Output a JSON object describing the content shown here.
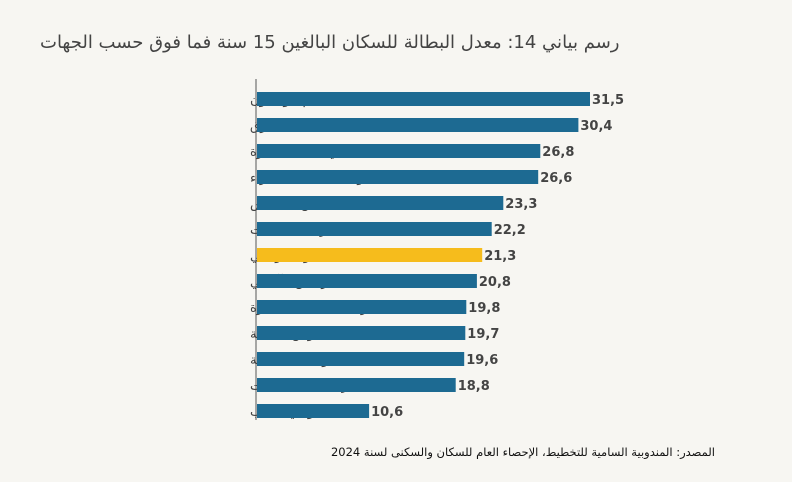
{
  "title": "رسم بياني 14: معدل البطالة للسكان البالغين 15 سنة فما فوق حسب الجهات",
  "source": "المصدر: المندوبية السامية للتخطيط، الإحصاء العام للسكان والسكنى لسنة 2024",
  "colors": {
    "bar": "#1d6a92",
    "highlight": "#f6bc1c",
    "background": "#f7f6f2",
    "axis": "#555555"
  },
  "chart_data": {
    "type": "bar",
    "orientation": "horizontal",
    "categories": [
      "كلميم - واد نون",
      "الشرق",
      "بني ملال - خنيفرة",
      "العيون - الساقية الحمراء",
      "فاس - مكناس",
      "درعة - تافيلالت",
      "المستوى الوطني",
      "مراكش - آسفي",
      "الرباط - سلا - القنيطرة",
      "سوس - ماسة",
      "طنجة - تطوان - الحسيمة",
      "الدار البيضاء - سطات",
      "الداخلة - وادي الذهب"
    ],
    "values": [
      31.5,
      30.4,
      26.8,
      26.6,
      23.3,
      22.2,
      21.3,
      20.8,
      19.8,
      19.7,
      19.6,
      18.8,
      10.6
    ],
    "value_labels": [
      "31,5",
      "30,4",
      "26,8",
      "26,6",
      "23,3",
      "22,2",
      "21,3",
      "20,8",
      "19,8",
      "19,7",
      "19,6",
      "18,8",
      "10,6"
    ],
    "highlight_category": "المستوى الوطني",
    "xlim": [
      0,
      31.5
    ],
    "grid": false,
    "legend": "none"
  }
}
